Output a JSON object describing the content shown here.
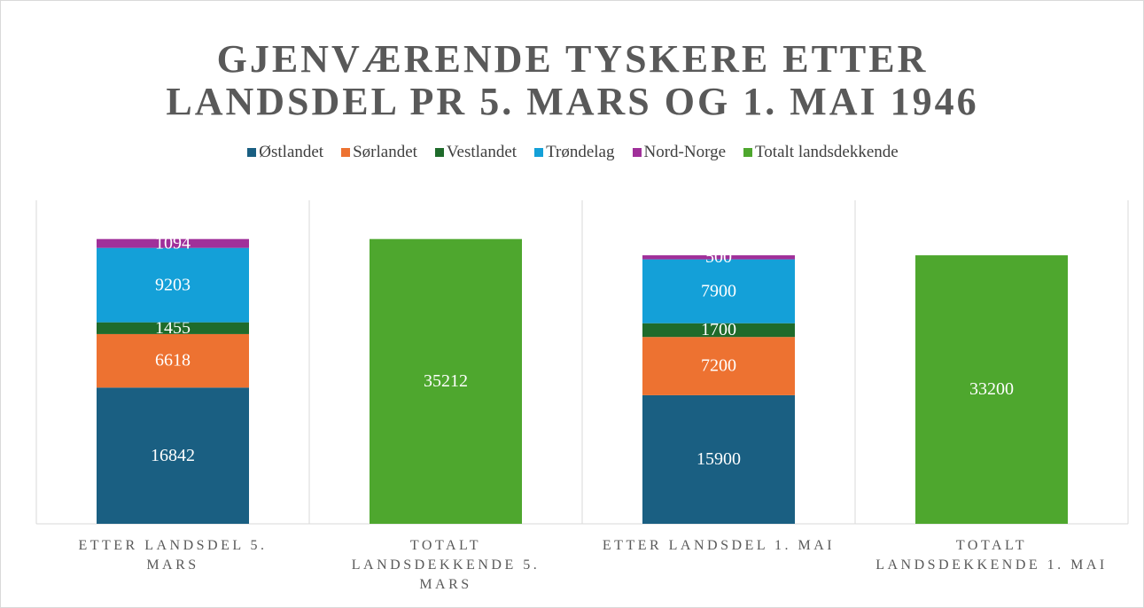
{
  "chart_data": {
    "type": "stacked_bar",
    "title": "GJENVÆRENDE TYSKERE ETTER LANDSDEL PR 5. MARS OG 1. MAI 1946",
    "categories": [
      "ETTER LANDSDEL 5. MARS",
      "TOTALT LANDSDEKKENDE 5. MARS",
      "ETTER LANDSDEL 1. MAI",
      "TOTALT LANDSDEKKENDE 1. MAI"
    ],
    "series": [
      {
        "name": "Østlandet",
        "color": "#1a5f82",
        "values": [
          16842,
          null,
          15900,
          null
        ]
      },
      {
        "name": "Sørlandet",
        "color": "#ed7231",
        "values": [
          6618,
          null,
          7200,
          null
        ]
      },
      {
        "name": "Vestlandet",
        "color": "#1f6b2b",
        "values": [
          1455,
          null,
          1700,
          null
        ]
      },
      {
        "name": "Trøndelag",
        "color": "#14a0d8",
        "values": [
          9203,
          null,
          7900,
          null
        ]
      },
      {
        "name": "Nord-Norge",
        "color": "#a0309a",
        "values": [
          1094,
          null,
          500,
          null
        ]
      },
      {
        "name": "Totalt landsdekkende",
        "color": "#4ea72e",
        "values": [
          null,
          35212,
          null,
          33200
        ]
      }
    ],
    "ylim": [
      0,
      40000
    ],
    "legend": "top"
  }
}
